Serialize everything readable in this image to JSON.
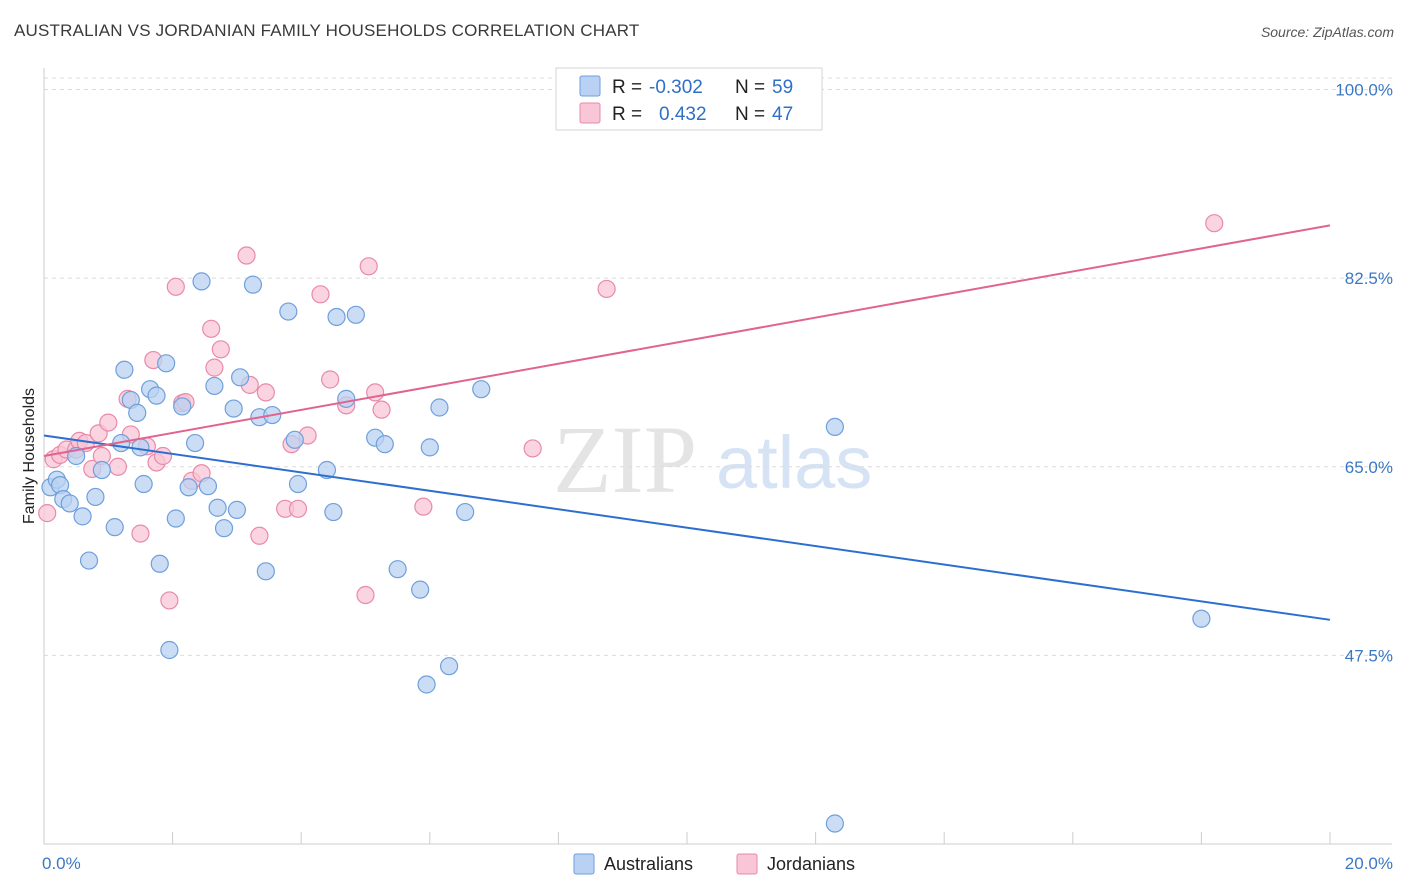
{
  "title": "AUSTRALIAN VS JORDANIAN FAMILY HOUSEHOLDS CORRELATION CHART",
  "source": "Source: ZipAtlas.com",
  "watermark": {
    "zip": "ZIP",
    "atlas": "atlas"
  },
  "colors": {
    "australians_fill": "#b9d1f2",
    "australians_stroke": "#6f9fdc",
    "australians_line": "#2d6fd0",
    "jordanians_fill": "#f8c6d6",
    "jordanians_stroke": "#e98aa9",
    "jordanians_line": "#e0648f",
    "axis_text": "#3b78c4",
    "grid": "#dcdcdc"
  },
  "legend": {
    "r_label": "R =",
    "n_label": "N =",
    "rows": [
      {
        "series": "Australians",
        "r": "-0.302",
        "n": "59"
      },
      {
        "series": "Jordanians",
        "r": "0.432",
        "n": "47"
      }
    ]
  },
  "chart_data": {
    "type": "scatter",
    "title": "AUSTRALIAN VS JORDANIAN FAMILY HOUSEHOLDS CORRELATION CHART",
    "xlabel": "",
    "ylabel": "Family Households",
    "xlim": [
      0,
      20
    ],
    "ylim": [
      30,
      102
    ],
    "x_tick_labels": [
      {
        "value": 0,
        "label": "0.0%"
      },
      {
        "value": 20,
        "label": "20.0%"
      }
    ],
    "y_tick_labels": [
      {
        "value": 100,
        "label": "100.0%"
      },
      {
        "value": 82.5,
        "label": "82.5%"
      },
      {
        "value": 65,
        "label": "65.0%"
      },
      {
        "value": 47.5,
        "label": "47.5%"
      }
    ],
    "series": [
      {
        "name": "Australians",
        "trend": {
          "x": [
            0,
            20
          ],
          "y": [
            67.9,
            50.8
          ]
        },
        "points": [
          [
            0.1,
            63.1
          ],
          [
            0.2,
            63.8
          ],
          [
            0.25,
            63.3
          ],
          [
            0.3,
            62.0
          ],
          [
            0.4,
            61.6
          ],
          [
            0.5,
            66.0
          ],
          [
            0.6,
            60.4
          ],
          [
            0.7,
            56.3
          ],
          [
            0.8,
            62.2
          ],
          [
            0.9,
            64.7
          ],
          [
            1.1,
            59.4
          ],
          [
            1.2,
            67.2
          ],
          [
            1.25,
            74.0
          ],
          [
            1.35,
            71.2
          ],
          [
            1.45,
            70.0
          ],
          [
            1.5,
            66.8
          ],
          [
            1.55,
            63.4
          ],
          [
            1.65,
            72.2
          ],
          [
            1.75,
            71.6
          ],
          [
            1.8,
            56.0
          ],
          [
            1.9,
            74.6
          ],
          [
            1.95,
            48.0
          ],
          [
            2.05,
            60.2
          ],
          [
            2.15,
            70.6
          ],
          [
            2.25,
            63.1
          ],
          [
            2.35,
            67.2
          ],
          [
            2.45,
            82.2
          ],
          [
            2.55,
            63.2
          ],
          [
            2.65,
            72.5
          ],
          [
            2.7,
            61.2
          ],
          [
            2.8,
            59.3
          ],
          [
            2.95,
            70.4
          ],
          [
            3.0,
            61.0
          ],
          [
            3.05,
            73.3
          ],
          [
            3.25,
            81.9
          ],
          [
            3.35,
            69.6
          ],
          [
            3.45,
            55.3
          ],
          [
            3.55,
            69.8
          ],
          [
            3.8,
            79.4
          ],
          [
            3.9,
            67.5
          ],
          [
            3.95,
            63.4
          ],
          [
            4.4,
            64.7
          ],
          [
            4.5,
            60.8
          ],
          [
            4.55,
            78.9
          ],
          [
            4.7,
            71.3
          ],
          [
            4.85,
            79.1
          ],
          [
            5.15,
            67.7
          ],
          [
            5.3,
            67.1
          ],
          [
            5.5,
            55.5
          ],
          [
            5.85,
            53.6
          ],
          [
            5.95,
            44.8
          ],
          [
            6.0,
            66.8
          ],
          [
            6.15,
            70.5
          ],
          [
            6.3,
            46.5
          ],
          [
            6.55,
            60.8
          ],
          [
            6.8,
            72.2
          ],
          [
            12.3,
            68.7
          ],
          [
            18.0,
            50.9
          ],
          [
            12.3,
            31.9
          ]
        ]
      },
      {
        "name": "Jordanians",
        "trend": {
          "x": [
            0,
            20
          ],
          "y": [
            66.0,
            87.4
          ]
        },
        "points": [
          [
            0.05,
            60.7
          ],
          [
            0.15,
            65.7
          ],
          [
            0.25,
            66.1
          ],
          [
            0.35,
            66.6
          ],
          [
            0.5,
            66.6
          ],
          [
            0.55,
            67.4
          ],
          [
            0.65,
            67.2
          ],
          [
            0.75,
            64.8
          ],
          [
            0.85,
            68.1
          ],
          [
            0.9,
            66.0
          ],
          [
            1.0,
            69.1
          ],
          [
            1.15,
            65.0
          ],
          [
            1.3,
            71.3
          ],
          [
            1.35,
            68.0
          ],
          [
            1.5,
            58.8
          ],
          [
            1.6,
            66.9
          ],
          [
            1.7,
            74.9
          ],
          [
            1.75,
            65.4
          ],
          [
            1.85,
            66.0
          ],
          [
            1.95,
            52.6
          ],
          [
            2.05,
            81.7
          ],
          [
            2.15,
            70.9
          ],
          [
            2.2,
            71.0
          ],
          [
            2.3,
            63.7
          ],
          [
            2.45,
            64.4
          ],
          [
            2.6,
            77.8
          ],
          [
            2.65,
            74.2
          ],
          [
            2.75,
            75.9
          ],
          [
            3.15,
            84.6
          ],
          [
            3.2,
            72.6
          ],
          [
            3.35,
            58.6
          ],
          [
            3.45,
            71.9
          ],
          [
            3.75,
            61.1
          ],
          [
            3.85,
            67.1
          ],
          [
            3.95,
            61.1
          ],
          [
            4.1,
            67.9
          ],
          [
            4.3,
            81.0
          ],
          [
            4.45,
            73.1
          ],
          [
            4.7,
            70.7
          ],
          [
            5.0,
            53.1
          ],
          [
            5.05,
            83.6
          ],
          [
            5.15,
            71.9
          ],
          [
            5.25,
            70.3
          ],
          [
            5.9,
            61.3
          ],
          [
            7.6,
            66.7
          ],
          [
            8.75,
            81.5
          ],
          [
            18.2,
            87.6
          ]
        ]
      }
    ]
  }
}
